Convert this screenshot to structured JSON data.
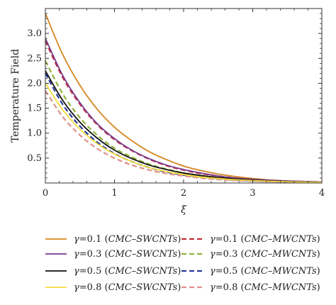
{
  "chart_data": {
    "type": "line",
    "title": "",
    "xlabel": "ξ",
    "ylabel": "Temperature Field",
    "xlim": [
      0,
      4
    ],
    "ylim": [
      0,
      3.5
    ],
    "xticks": [
      "0",
      "1",
      "2",
      "3",
      "4"
    ],
    "yticks": [
      "0.5",
      "1.0",
      "1.5",
      "2.0",
      "2.5",
      "3.0"
    ],
    "grid": false,
    "legend_position": "bottom",
    "x": [
      0,
      0.25,
      0.5,
      0.75,
      1,
      1.25,
      1.5,
      1.75,
      2,
      2.25,
      2.5,
      2.75,
      3,
      3.25,
      3.5,
      3.75,
      4
    ],
    "series": [
      {
        "name": "γ=0.1 (CMC–SWCNTs)",
        "gamma": "γ=0.1",
        "fluid": "(CMC–SWCNTs)",
        "color": "#d4861e",
        "dashed": false,
        "values": [
          3.4,
          2.58,
          1.96,
          1.48,
          1.12,
          0.85,
          0.63,
          0.47,
          0.34,
          0.25,
          0.18,
          0.13,
          0.09,
          0.06,
          0.04,
          0.03,
          0.02
        ]
      },
      {
        "name": "γ=0.1 (CMC–MWCNTs)",
        "gamma": "γ=0.1",
        "fluid": "(CMC–MWCNTs)",
        "color": "#c0303c",
        "dashed": true,
        "values": [
          2.85,
          2.12,
          1.58,
          1.17,
          0.87,
          0.65,
          0.48,
          0.35,
          0.26,
          0.19,
          0.14,
          0.1,
          0.07,
          0.05,
          0.035,
          0.025,
          0.02
        ]
      },
      {
        "name": "γ=0.3 (CMC–SWCNTs)",
        "gamma": "γ=0.3",
        "fluid": "(CMC–SWCNTs)",
        "color": "#7a3a8c",
        "dashed": false,
        "values": [
          2.9,
          2.16,
          1.61,
          1.19,
          0.89,
          0.66,
          0.49,
          0.36,
          0.27,
          0.2,
          0.14,
          0.1,
          0.075,
          0.055,
          0.04,
          0.03,
          0.02
        ]
      },
      {
        "name": "γ=0.3 (CMC–MWCNTs)",
        "gamma": "γ=0.3",
        "fluid": "(CMC–MWCNTs)",
        "color": "#8fb23a",
        "dashed": true,
        "values": [
          2.45,
          1.79,
          1.31,
          0.96,
          0.7,
          0.52,
          0.38,
          0.28,
          0.2,
          0.15,
          0.11,
          0.08,
          0.06,
          0.04,
          0.03,
          0.02,
          0.015
        ]
      },
      {
        "name": "γ=0.5 (CMC–SWCNTs)",
        "gamma": "γ=0.5",
        "fluid": "(CMC–SWCNTs)",
        "color": "#111111",
        "dashed": false,
        "values": [
          2.25,
          1.66,
          1.22,
          0.9,
          0.66,
          0.49,
          0.36,
          0.27,
          0.2,
          0.15,
          0.11,
          0.08,
          0.06,
          0.04,
          0.03,
          0.02,
          0.015
        ]
      },
      {
        "name": "γ=0.5 (CMC–MWCNTs)",
        "gamma": "γ=0.5",
        "fluid": "(CMC–MWCNTs)",
        "color": "#2a3a9c",
        "dashed": true,
        "values": [
          2.2,
          1.58,
          1.14,
          0.82,
          0.59,
          0.43,
          0.31,
          0.22,
          0.16,
          0.12,
          0.09,
          0.06,
          0.045,
          0.03,
          0.022,
          0.016,
          0.012
        ]
      },
      {
        "name": "γ=0.8 (CMC–SWCNTs)",
        "gamma": "γ=0.8",
        "fluid": "(CMC–SWCNTs)",
        "color": "#f2dc3c",
        "dashed": false,
        "values": [
          2.0,
          1.47,
          1.08,
          0.79,
          0.58,
          0.43,
          0.31,
          0.23,
          0.17,
          0.12,
          0.09,
          0.065,
          0.05,
          0.035,
          0.025,
          0.018,
          0.013
        ]
      },
      {
        "name": "γ=0.8 (CMC–MWCNTs)",
        "gamma": "γ=0.8",
        "fluid": "(CMC–MWCNTs)",
        "color": "#e0908c",
        "dashed": true,
        "values": [
          1.85,
          1.33,
          0.96,
          0.69,
          0.5,
          0.36,
          0.26,
          0.19,
          0.14,
          0.1,
          0.07,
          0.05,
          0.037,
          0.027,
          0.02,
          0.014,
          0.01
        ]
      }
    ],
    "legend_order": [
      [
        "γ=0.1 (CMC–SWCNTs)",
        "γ=0.1 (CMC–MWCNTs)"
      ],
      [
        "γ=0.3 (CMC–SWCNTs)",
        "γ=0.3 (CMC–MWCNTs)"
      ],
      [
        "γ=0.5 (CMC–SWCNTs)",
        "γ=0.5 (CMC–MWCNTs)"
      ],
      [
        "γ=0.8 (CMC–SWCNTs)",
        "γ=0.8 (CMC–MWCNTs)"
      ]
    ]
  }
}
